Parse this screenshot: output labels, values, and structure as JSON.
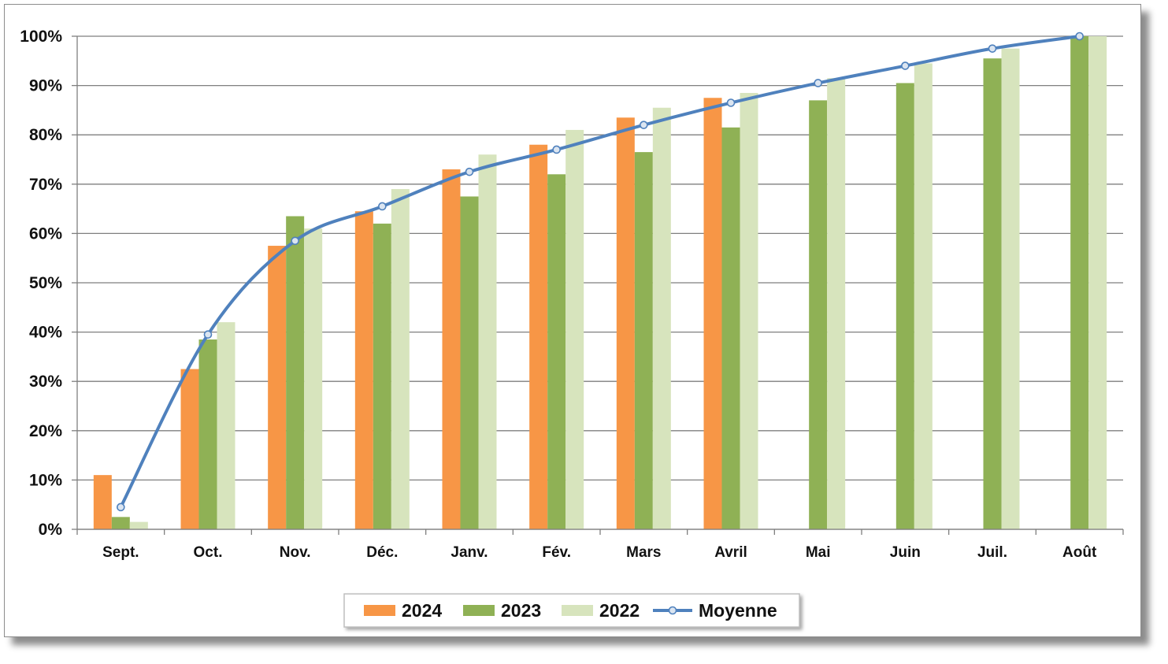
{
  "chart_data": {
    "type": "bar",
    "categories": [
      "Sept.",
      "Oct.",
      "Nov.",
      "Déc.",
      "Janv.",
      "Fév.",
      "Mars",
      "Avril",
      "Mai",
      "Juin",
      "Juil.",
      "Août"
    ],
    "series": [
      {
        "name": "2024",
        "type": "bar",
        "color": "#f79646",
        "values": [
          11,
          32.5,
          57.5,
          64.5,
          73,
          78,
          83.5,
          87.5,
          null,
          null,
          null,
          null
        ]
      },
      {
        "name": "2023",
        "type": "bar",
        "color": "#8fb155",
        "values": [
          2.5,
          38.5,
          63.5,
          62,
          67.5,
          72,
          76.5,
          81.5,
          87,
          90.5,
          95.5,
          100
        ]
      },
      {
        "name": "2022",
        "type": "bar",
        "color": "#d7e4bd",
        "values": [
          1.5,
          42,
          61,
          69,
          76,
          81,
          85.5,
          88.5,
          91.5,
          94.5,
          97.5,
          100
        ]
      },
      {
        "name": "Moyenne",
        "type": "line",
        "color": "#4f81bd",
        "values": [
          4.5,
          39.5,
          58.5,
          65.5,
          72.5,
          77,
          82,
          86.5,
          90.5,
          94,
          97.5,
          100
        ]
      }
    ],
    "y_ticks": [
      "0%",
      "10%",
      "20%",
      "30%",
      "40%",
      "50%",
      "60%",
      "70%",
      "80%",
      "90%",
      "100%"
    ],
    "ylim": [
      0,
      100
    ],
    "grid": true,
    "legend_position": "bottom"
  }
}
